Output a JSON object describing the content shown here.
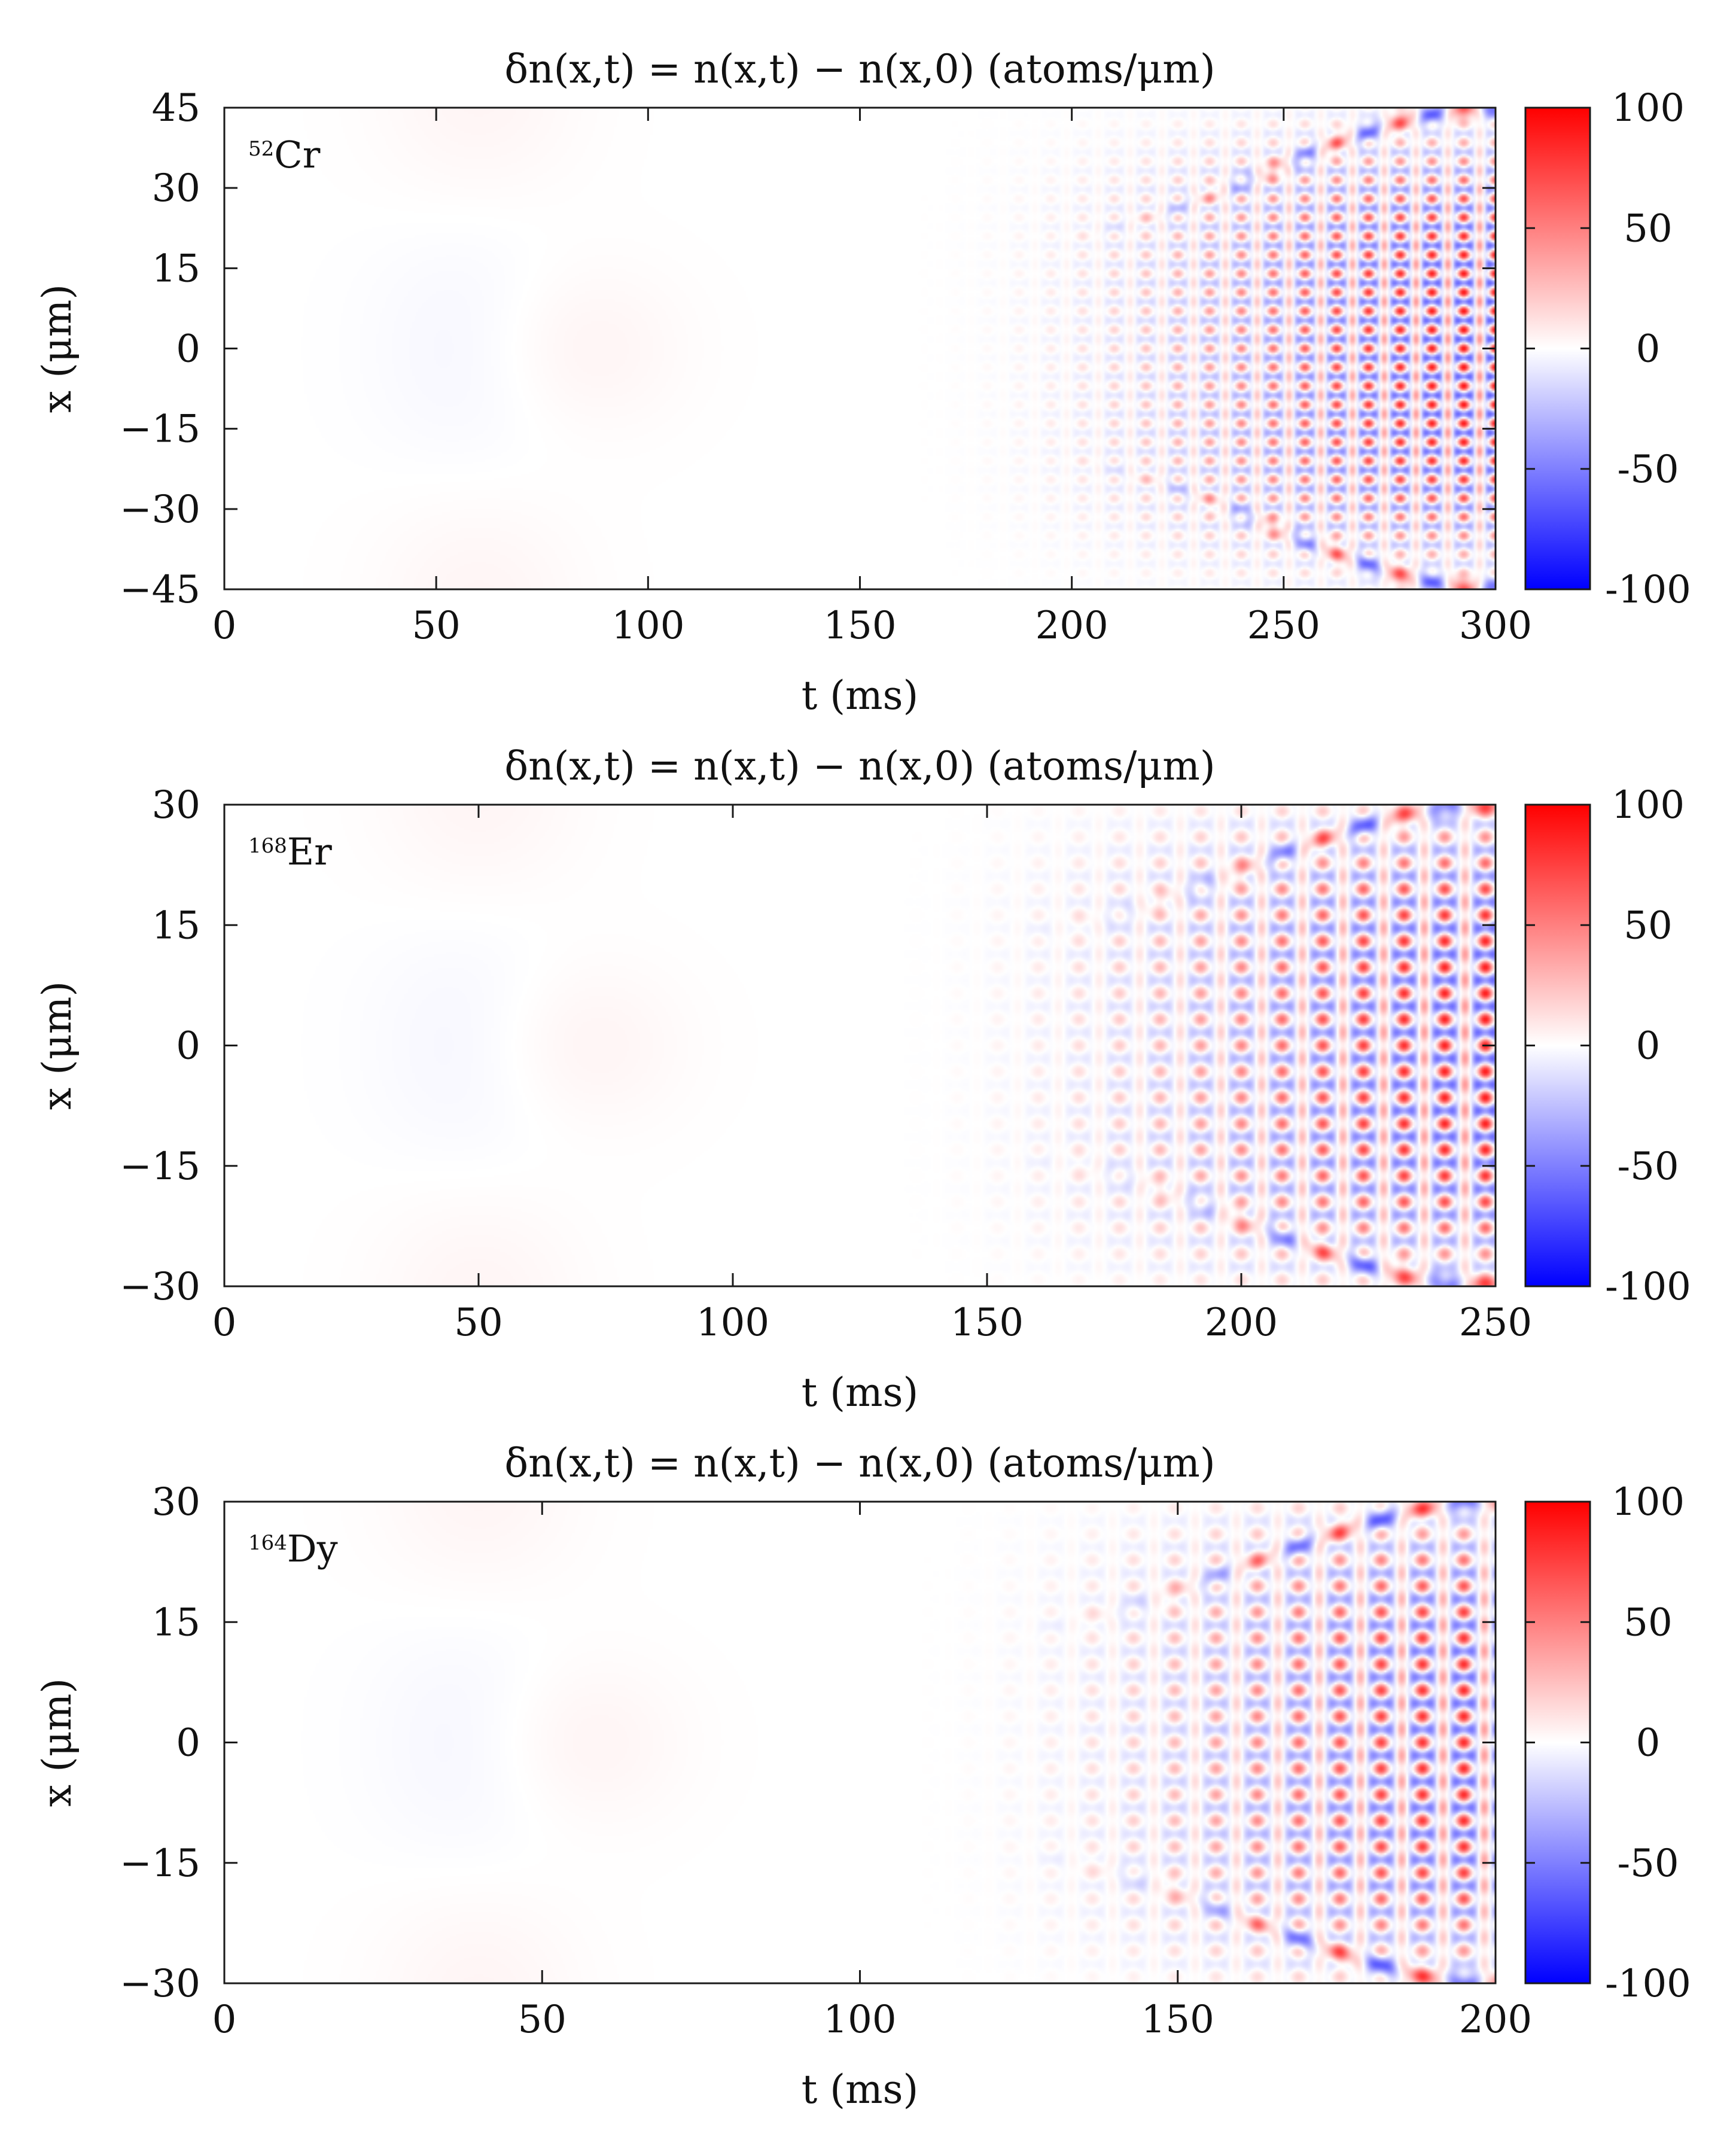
{
  "figure": {
    "panel_count": 3,
    "background": "#ffffff",
    "frame_color": "#1a1a1a"
  },
  "colormap": {
    "name": "blue-white-red",
    "low": "#0000ff",
    "mid": "#ffffff",
    "high": "#ff0000"
  },
  "chart_data": [
    {
      "type": "heatmap",
      "title": "δn(x,t) = n(x,t) − n(x,0)   (atoms/μm)",
      "label_mass": "52",
      "label_element": "Cr",
      "xlabel": "t (ms)",
      "ylabel": "x (μm)",
      "xlim": [
        0,
        300
      ],
      "ylim": [
        -45,
        45
      ],
      "x_ticks": [
        0,
        50,
        100,
        150,
        200,
        250,
        300
      ],
      "x_tick_labels": [
        "0",
        "50",
        "100",
        "150",
        "200",
        "250",
        "300"
      ],
      "y_ticks": [
        45,
        30,
        15,
        0,
        -15,
        -30,
        -45
      ],
      "y_tick_labels": [
        "45",
        "30",
        "15",
        "0",
        "−15",
        "−30",
        "−45"
      ],
      "colorbar": {
        "range": [
          -100,
          100
        ],
        "ticks": [
          100,
          50,
          0,
          -50,
          -100
        ],
        "tick_labels": [
          "100",
          "50",
          "0",
          "-50",
          "-100"
        ]
      },
      "pattern": {
        "onset_ms": 150,
        "cloud_halfwidth_um": 38,
        "peak_amplitude": 95,
        "lattice_spacing_um": 7,
        "lattice_period_ms": 7.5,
        "cone_edge_start_ms": 190
      }
    },
    {
      "type": "heatmap",
      "title": "δn(x,t) = n(x,t) − n(x,0)   (atoms/μm)",
      "label_mass": "168",
      "label_element": "Er",
      "xlabel": "t (ms)",
      "ylabel": "x (μm)",
      "xlim": [
        0,
        250
      ],
      "ylim": [
        -30,
        30
      ],
      "x_ticks": [
        0,
        50,
        100,
        150,
        200,
        250
      ],
      "x_tick_labels": [
        "0",
        "50",
        "100",
        "150",
        "200",
        "250"
      ],
      "y_ticks": [
        30,
        15,
        0,
        -15,
        -30
      ],
      "y_tick_labels": [
        "30",
        "15",
        "0",
        "−15",
        "−30"
      ],
      "colorbar": {
        "range": [
          -100,
          100
        ],
        "ticks": [
          100,
          50,
          0,
          -50,
          -100
        ],
        "tick_labels": [
          "100",
          "50",
          "0",
          "-50",
          "-100"
        ]
      },
      "pattern": {
        "onset_ms": 120,
        "cloud_halfwidth_um": 28,
        "peak_amplitude": 90,
        "lattice_spacing_um": 6.5,
        "lattice_period_ms": 8,
        "cone_edge_start_ms": 150
      }
    },
    {
      "type": "heatmap",
      "title": "δn(x,t) = n(x,t) − n(x,0)   (atoms/μm)",
      "label_mass": "164",
      "label_element": "Dy",
      "xlabel": "t (ms)",
      "ylabel": "x (μm)",
      "xlim": [
        0,
        200
      ],
      "ylim": [
        -30,
        30
      ],
      "x_ticks": [
        0,
        50,
        100,
        150,
        200
      ],
      "x_tick_labels": [
        "0",
        "50",
        "100",
        "150",
        "200"
      ],
      "y_ticks": [
        30,
        15,
        0,
        -15,
        -30
      ],
      "y_tick_labels": [
        "30",
        "15",
        "0",
        "−15",
        "−30"
      ],
      "colorbar": {
        "range": [
          -100,
          100
        ],
        "ticks": [
          100,
          50,
          0,
          -50,
          -100
        ],
        "tick_labels": [
          "100",
          "50",
          "0",
          "-50",
          "-100"
        ]
      },
      "pattern": {
        "onset_ms": 100,
        "cloud_halfwidth_um": 28,
        "peak_amplitude": 85,
        "lattice_spacing_um": 6.5,
        "lattice_period_ms": 6.5,
        "cone_edge_start_ms": 120
      }
    }
  ]
}
